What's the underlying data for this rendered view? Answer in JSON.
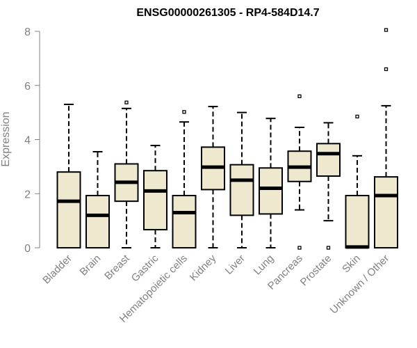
{
  "chart_data": {
    "type": "box",
    "title": "ENSG00000261305 - RP4-584D14.7",
    "xlabel": "",
    "ylabel": "Expression",
    "ylim": [
      0,
      8
    ],
    "yticks": [
      0,
      2,
      4,
      6,
      8
    ],
    "grid": false,
    "legend": "none",
    "box_fill": "#EEE8CF",
    "box_stroke": "#000000",
    "categories": [
      "Bladder",
      "Brain",
      "Breast",
      "Gastric",
      "Hematopoietic cells",
      "Kidney",
      "Liver",
      "Lung",
      "Pancreas",
      "Prostate",
      "Skin",
      "Unknown / Other"
    ],
    "boxes": [
      {
        "category": "Bladder",
        "min": 0,
        "q1": 0,
        "median": 1.72,
        "q3": 2.8,
        "max": 5.3,
        "outliers": []
      },
      {
        "category": "Brain",
        "min": 0,
        "q1": 0,
        "median": 1.2,
        "q3": 1.93,
        "max": 3.55,
        "outliers": []
      },
      {
        "category": "Breast",
        "min": 0,
        "q1": 1.72,
        "median": 2.42,
        "q3": 3.1,
        "max": 5.15,
        "outliers": [
          5.37
        ]
      },
      {
        "category": "Gastric",
        "min": 0,
        "q1": 0.67,
        "median": 2.1,
        "q3": 2.85,
        "max": 3.78,
        "outliers": []
      },
      {
        "category": "Hematopoietic cells",
        "min": 0,
        "q1": 0,
        "median": 1.3,
        "q3": 1.93,
        "max": 4.65,
        "outliers": [
          5.02
        ]
      },
      {
        "category": "Kidney",
        "min": 0,
        "q1": 2.15,
        "median": 2.98,
        "q3": 3.72,
        "max": 5.22,
        "outliers": []
      },
      {
        "category": "Liver",
        "min": 0,
        "q1": 1.2,
        "median": 2.5,
        "q3": 3.07,
        "max": 5.0,
        "outliers": []
      },
      {
        "category": "Lung",
        "min": 0,
        "q1": 1.25,
        "median": 2.2,
        "q3": 2.95,
        "max": 4.78,
        "outliers": []
      },
      {
        "category": "Pancreas",
        "min": 1.4,
        "q1": 2.45,
        "median": 2.98,
        "q3": 3.57,
        "max": 4.45,
        "outliers": [
          0,
          5.6
        ]
      },
      {
        "category": "Prostate",
        "min": 1.0,
        "q1": 2.65,
        "median": 3.48,
        "q3": 3.85,
        "max": 4.62,
        "outliers": [
          0
        ]
      },
      {
        "category": "Skin",
        "min": 0,
        "q1": 0,
        "median": 0.03,
        "q3": 1.93,
        "max": 3.4,
        "outliers": [
          4.85
        ]
      },
      {
        "category": "Unknown / Other",
        "min": 0,
        "q1": 0,
        "median": 1.93,
        "q3": 2.62,
        "max": 5.25,
        "outliers": [
          6.6,
          8.05
        ]
      }
    ]
  }
}
